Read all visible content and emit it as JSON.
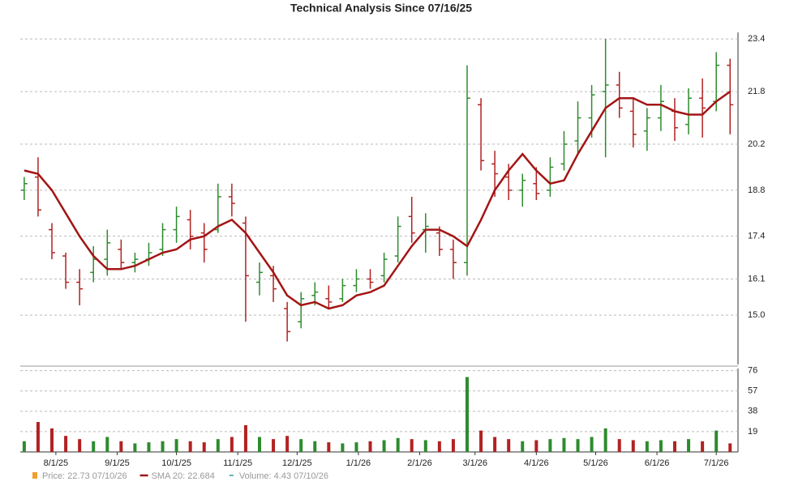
{
  "chart_data": {
    "type": "ohlc",
    "title": "Technical Analysis Since 07/16/25",
    "x": [
      "7/16/25",
      "7/23/25",
      "7/30/25",
      "8/6/25",
      "8/13/25",
      "8/20/25",
      "8/27/25",
      "9/3/25",
      "9/10/25",
      "9/17/25",
      "9/24/25",
      "10/1/25",
      "10/8/25",
      "10/15/25",
      "10/22/25",
      "10/29/25",
      "11/5/25",
      "11/12/25",
      "11/19/25",
      "11/26/25",
      "12/3/25",
      "12/10/25",
      "12/17/25",
      "12/24/25",
      "12/31/25",
      "1/7/26",
      "1/14/26",
      "1/21/26",
      "1/28/26",
      "2/4/26",
      "2/11/26",
      "2/18/26",
      "2/25/26",
      "3/4/26",
      "3/11/26",
      "3/18/26",
      "3/25/26",
      "4/1/26",
      "4/8/26",
      "4/15/26",
      "4/22/26",
      "4/29/26",
      "5/6/26",
      "5/13/26",
      "5/20/26",
      "5/27/26",
      "6/3/26",
      "6/10/26",
      "6/17/26",
      "6/24/26",
      "7/1/26",
      "7/8/26"
    ],
    "open": [
      18.8,
      19.2,
      17.6,
      16.8,
      16.0,
      16.3,
      16.7,
      17.0,
      16.6,
      16.7,
      17.0,
      17.6,
      17.9,
      17.5,
      17.6,
      18.6,
      17.8,
      16.0,
      16.2,
      15.2,
      14.8,
      15.6,
      15.5,
      15.5,
      15.9,
      16.1,
      16.2,
      16.8,
      18.0,
      17.6,
      17.5,
      17.0,
      16.6,
      21.4,
      19.6,
      19.2,
      18.8,
      19.0,
      18.8,
      19.6,
      20.3,
      21.0,
      21.8,
      22.0,
      21.2,
      20.6,
      21.0,
      21.2,
      20.8,
      21.6,
      21.5,
      22.6
    ],
    "high": [
      19.2,
      19.8,
      17.8,
      16.9,
      16.4,
      17.1,
      17.6,
      17.3,
      16.9,
      17.2,
      17.8,
      18.3,
      18.2,
      17.8,
      19.0,
      19.0,
      18.0,
      16.6,
      16.5,
      15.4,
      15.7,
      16.0,
      15.9,
      16.1,
      16.4,
      16.4,
      16.9,
      18.0,
      18.6,
      18.1,
      17.7,
      17.3,
      22.6,
      21.6,
      20.0,
      19.6,
      19.3,
      19.5,
      19.8,
      20.6,
      21.5,
      22.0,
      23.4,
      22.4,
      21.6,
      21.3,
      22.0,
      21.6,
      21.9,
      22.2,
      23.0,
      22.8
    ],
    "low": [
      18.5,
      18.0,
      16.7,
      15.8,
      15.3,
      16.0,
      16.2,
      16.4,
      16.3,
      16.5,
      16.8,
      17.2,
      17.0,
      16.6,
      17.5,
      18.0,
      14.8,
      15.6,
      15.4,
      14.2,
      14.6,
      15.3,
      15.2,
      15.4,
      15.7,
      15.8,
      16.0,
      16.6,
      17.2,
      16.9,
      16.8,
      16.1,
      16.2,
      19.4,
      18.6,
      18.5,
      18.3,
      18.5,
      18.6,
      19.4,
      19.9,
      20.4,
      19.8,
      21.0,
      20.1,
      20.0,
      20.6,
      20.3,
      20.5,
      20.4,
      21.2,
      20.5
    ],
    "close": [
      19.0,
      18.2,
      16.9,
      16.0,
      15.8,
      16.7,
      17.2,
      16.6,
      16.7,
      16.9,
      17.6,
      18.0,
      17.4,
      17.0,
      18.6,
      18.4,
      16.2,
      16.3,
      15.8,
      14.5,
      15.5,
      15.7,
      15.4,
      15.9,
      16.1,
      16.0,
      16.7,
      17.7,
      17.5,
      17.7,
      17.0,
      16.6,
      21.6,
      19.7,
      19.3,
      18.8,
      19.1,
      18.7,
      19.5,
      20.2,
      21.0,
      21.7,
      22.0,
      21.3,
      20.5,
      21.0,
      21.5,
      20.7,
      21.6,
      21.3,
      22.6,
      21.4
    ],
    "up_color": "#2e8b2e",
    "down_color": "#b22222",
    "sma": {
      "color": "#a31515",
      "values": [
        19.4,
        19.3,
        18.8,
        18.1,
        17.4,
        16.8,
        16.4,
        16.4,
        16.5,
        16.7,
        16.9,
        17.0,
        17.3,
        17.4,
        17.7,
        17.9,
        17.5,
        16.9,
        16.3,
        15.6,
        15.3,
        15.4,
        15.2,
        15.3,
        15.6,
        15.7,
        15.9,
        16.5,
        17.1,
        17.6,
        17.6,
        17.4,
        17.1,
        17.9,
        18.8,
        19.4,
        19.9,
        19.4,
        19.0,
        19.1,
        19.9,
        20.6,
        21.3,
        21.6,
        21.6,
        21.4,
        21.4,
        21.2,
        21.1,
        21.1,
        21.5,
        21.8
      ]
    },
    "volume": {
      "values": [
        10,
        28,
        22,
        15,
        12,
        10,
        14,
        10,
        8,
        9,
        10,
        12,
        10,
        9,
        12,
        14,
        25,
        14,
        12,
        15,
        12,
        10,
        9,
        8,
        9,
        10,
        11,
        13,
        12,
        11,
        10,
        12,
        70,
        20,
        14,
        12,
        10,
        11,
        12,
        13,
        12,
        14,
        22,
        12,
        11,
        10,
        11,
        10,
        12,
        10,
        20,
        8
      ],
      "ylim": [
        0,
        78
      ],
      "yticks": [
        19,
        38,
        57,
        76
      ]
    },
    "xlim": [
      "7/14/25",
      "7/12/26"
    ],
    "xticks": [
      "8/1/25",
      "9/1/25",
      "10/1/25",
      "11/1/25",
      "12/1/25",
      "1/1/26",
      "2/1/26",
      "3/1/26",
      "4/1/26",
      "5/1/26",
      "6/1/26",
      "7/1/26"
    ],
    "ylim": [
      13.5,
      23.6
    ],
    "yticks": [
      {
        "value": 15,
        "label": "15.0"
      },
      16.1,
      17.4,
      18.8,
      20.2,
      21.8,
      23.4
    ],
    "grid": true,
    "legend": [
      {
        "text": "Price: 22.73  07/10/26",
        "color": "#f0a030"
      },
      {
        "text": "SMA 20: 22.684",
        "color": "#a31515"
      },
      {
        "text": "Volume: 4.43  07/10/26",
        "color": "#2aa198"
      }
    ]
  }
}
